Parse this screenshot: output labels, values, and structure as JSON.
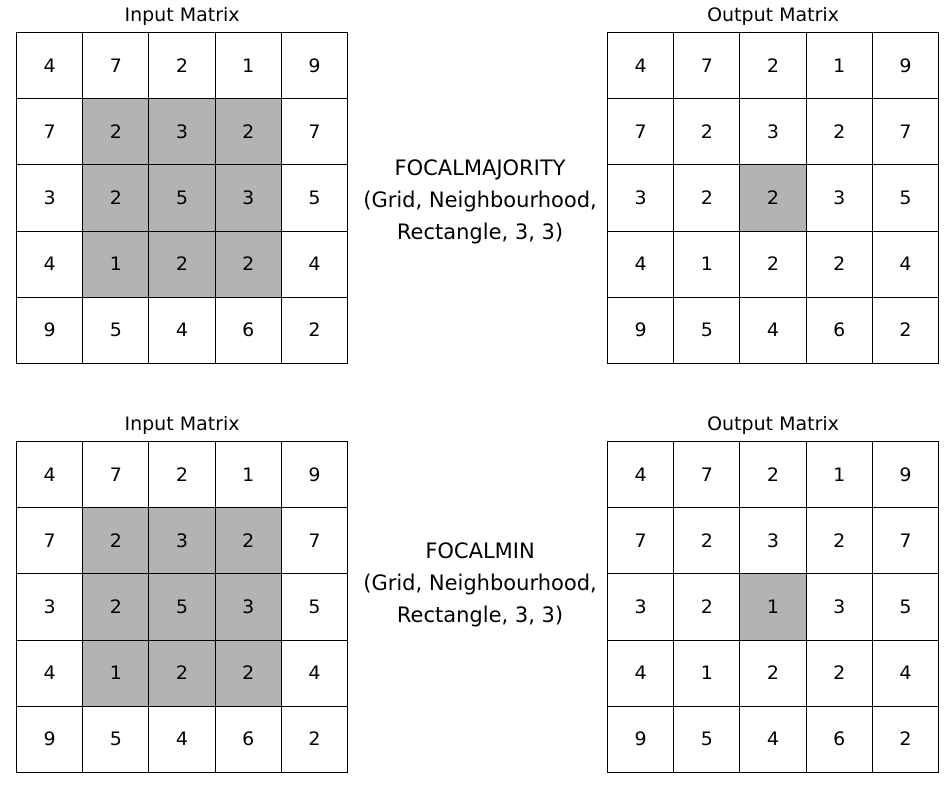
{
  "panels": [
    {
      "input_title": "Input Matrix",
      "output_title": "Output Matrix",
      "operation": {
        "name": "FOCALMAJORITY",
        "line2": "(Grid, Neighbourhood,",
        "line3": "Rectangle, 3, 3)"
      },
      "input": [
        [
          "4",
          "7",
          "2",
          "1",
          "9"
        ],
        [
          "7",
          "2",
          "3",
          "2",
          "7"
        ],
        [
          "3",
          "2",
          "5",
          "3",
          "5"
        ],
        [
          "4",
          "1",
          "2",
          "2",
          "4"
        ],
        [
          "9",
          "5",
          "4",
          "6",
          "2"
        ]
      ],
      "output": [
        [
          "4",
          "7",
          "2",
          "1",
          "9"
        ],
        [
          "7",
          "2",
          "3",
          "2",
          "7"
        ],
        [
          "3",
          "2",
          "2",
          "3",
          "5"
        ],
        [
          "4",
          "1",
          "2",
          "2",
          "4"
        ],
        [
          "9",
          "5",
          "4",
          "6",
          "2"
        ]
      ]
    },
    {
      "input_title": "Input Matrix",
      "output_title": "Output Matrix",
      "operation": {
        "name": "FOCALMIN",
        "line2": "(Grid, Neighbourhood,",
        "line3": "Rectangle, 3, 3)"
      },
      "input": [
        [
          "4",
          "7",
          "2",
          "1",
          "9"
        ],
        [
          "7",
          "2",
          "3",
          "2",
          "7"
        ],
        [
          "3",
          "2",
          "5",
          "3",
          "5"
        ],
        [
          "4",
          "1",
          "2",
          "2",
          "4"
        ],
        [
          "9",
          "5",
          "4",
          "6",
          "2"
        ]
      ],
      "output": [
        [
          "4",
          "7",
          "2",
          "1",
          "9"
        ],
        [
          "7",
          "2",
          "3",
          "2",
          "7"
        ],
        [
          "3",
          "2",
          "1",
          "3",
          "5"
        ],
        [
          "4",
          "1",
          "2",
          "2",
          "4"
        ],
        [
          "9",
          "5",
          "4",
          "6",
          "2"
        ]
      ]
    }
  ],
  "highlight_color": "#b3b3b3"
}
